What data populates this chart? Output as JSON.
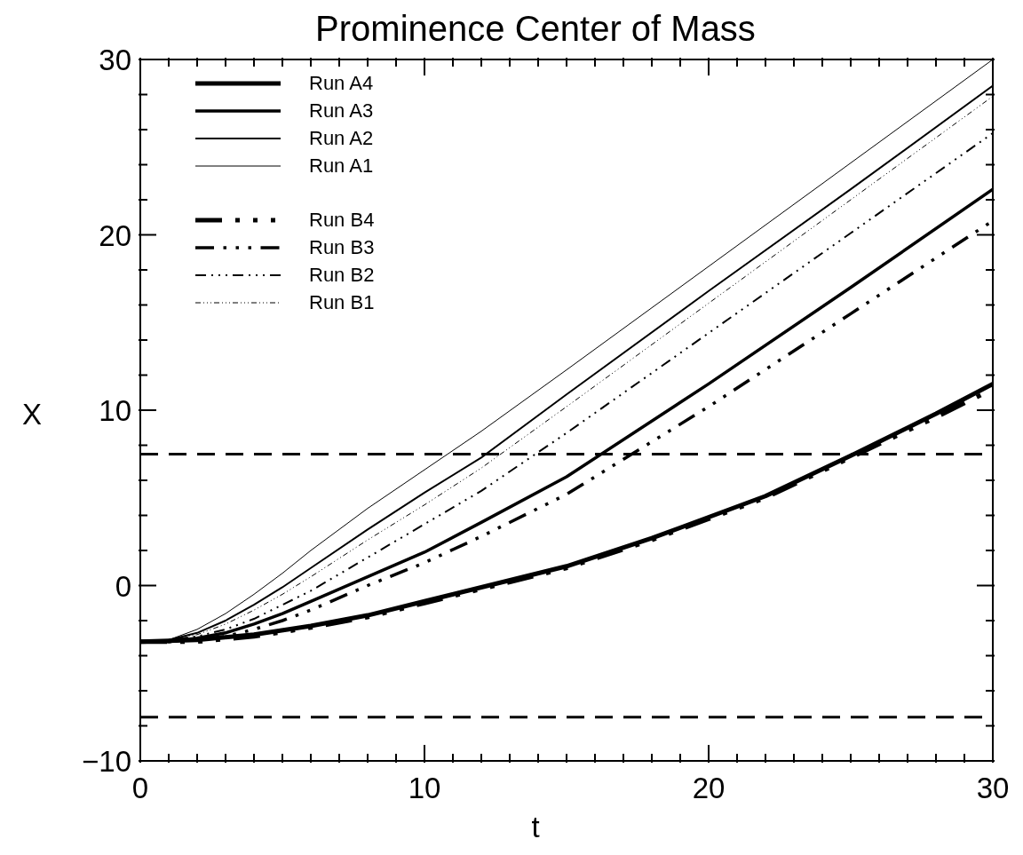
{
  "chart_data": {
    "type": "line",
    "title": "Prominence Center of Mass",
    "xlabel": "t",
    "ylabel": "X",
    "xlim": [
      0,
      30
    ],
    "ylim": [
      -10,
      30
    ],
    "xticks": [
      0,
      {
        "value": 1,
        "label": null
      },
      {
        "value": 2,
        "label": null
      },
      {
        "value": 3,
        "label": null
      },
      {
        "value": 4,
        "label": null
      },
      {
        "value": 5,
        "label": null
      },
      {
        "value": 6,
        "label": null
      },
      {
        "value": 7,
        "label": null
      },
      {
        "value": 8,
        "label": null
      },
      {
        "value": 9,
        "label": null
      },
      10,
      {
        "value": 11,
        "label": null
      },
      {
        "value": 12,
        "label": null
      },
      {
        "value": 13,
        "label": null
      },
      {
        "value": 14,
        "label": null
      },
      {
        "value": 15,
        "label": null
      },
      {
        "value": 16,
        "label": null
      },
      {
        "value": 17,
        "label": null
      },
      {
        "value": 18,
        "label": null
      },
      {
        "value": 19,
        "label": null
      },
      20,
      {
        "value": 21,
        "label": null
      },
      {
        "value": 22,
        "label": null
      },
      {
        "value": 23,
        "label": null
      },
      {
        "value": 24,
        "label": null
      },
      {
        "value": 25,
        "label": null
      },
      {
        "value": 26,
        "label": null
      },
      {
        "value": 27,
        "label": null
      },
      {
        "value": 28,
        "label": null
      },
      {
        "value": 29,
        "label": null
      },
      30
    ],
    "yticks": [
      {
        "value": -10,
        "label": "−10"
      },
      {
        "value": -8,
        "label": null
      },
      {
        "value": -6,
        "label": null
      },
      {
        "value": -4,
        "label": null
      },
      {
        "value": -2,
        "label": null
      },
      0,
      {
        "value": 2,
        "label": null
      },
      {
        "value": 4,
        "label": null
      },
      {
        "value": 6,
        "label": null
      },
      {
        "value": 8,
        "label": null
      },
      10,
      {
        "value": 12,
        "label": null
      },
      {
        "value": 14,
        "label": null
      },
      {
        "value": 16,
        "label": null
      },
      {
        "value": 18,
        "label": null
      },
      20,
      {
        "value": 22,
        "label": null
      },
      {
        "value": 24,
        "label": null
      },
      {
        "value": 26,
        "label": null
      },
      {
        "value": 28,
        "label": null
      },
      30
    ],
    "grid": false,
    "legend": "top left",
    "marker": "none",
    "ref_lines": [
      {
        "axis": "y",
        "value": 7.5,
        "color": "#000000",
        "line_style": "dashed"
      },
      {
        "axis": "y",
        "value": -7.5,
        "color": "#000000",
        "line_style": "dashed"
      }
    ],
    "series": [
      {
        "name": "Run A4",
        "color": "#000000",
        "line_style": "solid",
        "x": [
          0,
          2,
          4,
          6,
          8,
          10,
          12,
          15,
          18,
          20,
          22,
          25,
          28,
          30
        ],
        "values": [
          -3.2,
          -3.1,
          -2.8,
          -2.3,
          -1.7,
          -0.9,
          -0.1,
          1.1,
          2.7,
          3.9,
          5.1,
          7.4,
          9.8,
          11.5
        ]
      },
      {
        "name": "Run A3",
        "color": "#000000",
        "line_style": "solid",
        "x": [
          0,
          1,
          2,
          3,
          4,
          5,
          6,
          8,
          10,
          12,
          15,
          20,
          25,
          30
        ],
        "values": [
          -3.2,
          -3.2,
          -3.0,
          -2.7,
          -2.2,
          -1.6,
          -0.9,
          0.5,
          1.9,
          3.6,
          6.2,
          11.5,
          17.0,
          22.6
        ]
      },
      {
        "name": "Run A2",
        "color": "#000000",
        "line_style": "solid",
        "x": [
          0,
          1,
          2,
          3,
          4,
          5,
          6,
          8,
          10,
          12,
          15,
          20,
          25,
          30
        ],
        "values": [
          -3.2,
          -3.1,
          -2.7,
          -2.0,
          -1.1,
          -0.1,
          1.0,
          3.2,
          5.3,
          7.3,
          10.9,
          16.8,
          22.6,
          28.5
        ]
      },
      {
        "name": "Run A1",
        "color": "#000000",
        "line_style": "solid",
        "x": [
          0,
          1,
          2,
          3,
          4,
          5,
          6,
          8,
          10,
          12,
          15,
          20,
          25,
          30
        ],
        "values": [
          -3.2,
          -3.1,
          -2.5,
          -1.6,
          -0.5,
          0.7,
          2.0,
          4.4,
          6.6,
          8.8,
          12.3,
          18.2,
          24.1,
          30.0
        ]
      },
      {
        "name": "Run B4",
        "color": "#000000",
        "line_style": "dashed",
        "x": [
          0,
          2,
          4,
          6,
          8,
          10,
          12,
          15,
          18,
          20,
          22,
          25,
          28,
          30
        ],
        "values": [
          -3.2,
          -3.2,
          -2.9,
          -2.4,
          -1.8,
          -1.0,
          -0.2,
          1.0,
          2.6,
          3.8,
          5.0,
          7.3,
          9.6,
          11.2
        ]
      },
      {
        "name": "Run B3",
        "color": "#000000",
        "line_style": "dashed",
        "x": [
          0,
          1,
          2,
          3,
          4,
          5,
          6,
          8,
          10,
          12,
          15,
          20,
          25,
          30
        ],
        "values": [
          -3.2,
          -3.2,
          -3.1,
          -2.9,
          -2.5,
          -2.0,
          -1.4,
          0.0,
          1.3,
          2.8,
          5.2,
          10.2,
          15.5,
          20.8
        ]
      },
      {
        "name": "Run B2",
        "color": "#000000",
        "line_style": "dashed",
        "x": [
          0,
          1,
          2,
          3,
          4,
          5,
          6,
          8,
          10,
          12,
          15,
          20,
          25,
          30
        ],
        "values": [
          -3.2,
          -3.1,
          -2.9,
          -2.5,
          -1.9,
          -1.1,
          -0.3,
          1.6,
          3.5,
          5.4,
          8.7,
          14.4,
          20.1,
          25.8
        ]
      },
      {
        "name": "Run B1",
        "color": "#000000",
        "line_style": "dashed",
        "x": [
          0,
          1,
          2,
          3,
          4,
          5,
          6,
          8,
          10,
          12,
          15,
          20,
          25,
          30
        ],
        "values": [
          -3.2,
          -3.1,
          -2.8,
          -2.2,
          -1.4,
          -0.5,
          0.5,
          2.6,
          4.6,
          6.7,
          10.2,
          16.1,
          22.0,
          27.9
        ]
      }
    ]
  }
}
